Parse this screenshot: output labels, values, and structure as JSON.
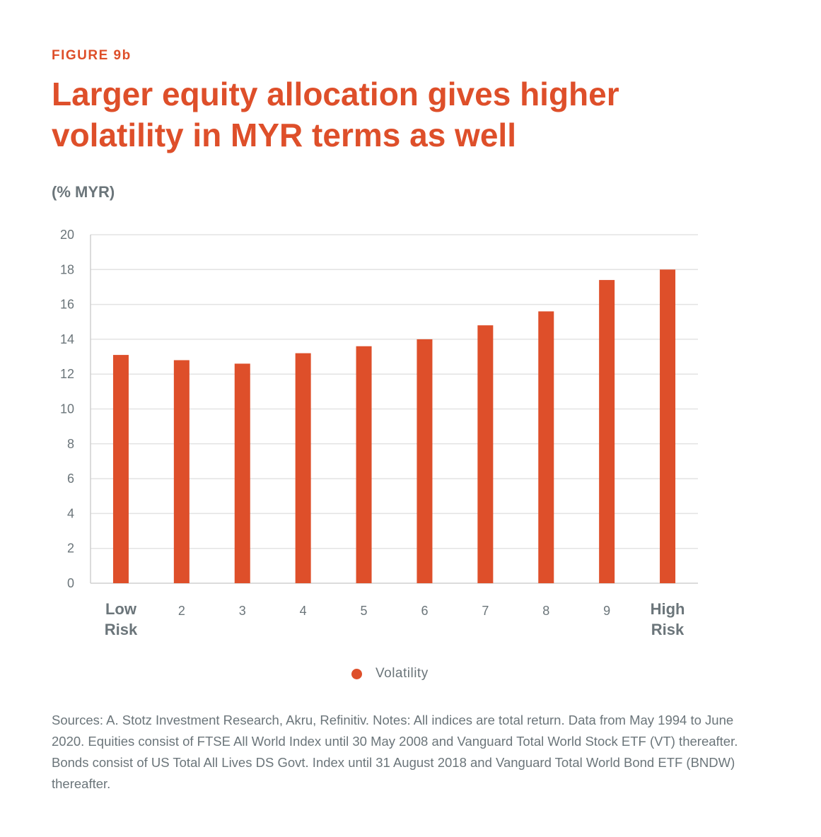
{
  "header": {
    "figure_label": "FIGURE 9b",
    "title": "Larger equity allocation gives higher volatility in MYR terms as well",
    "unit_label": "(% MYR)"
  },
  "colors": {
    "bar": "#de4f2a",
    "grid": "#e3e3e3",
    "text": "#6b757a",
    "axis": "#cfcfcf"
  },
  "chart_data": {
    "type": "bar",
    "title": "Larger equity allocation gives higher volatility in MYR terms as well",
    "ylabel": "(% MYR)",
    "xlabel": "",
    "categories": [
      "Low\nRisk",
      "2",
      "3",
      "4",
      "5",
      "6",
      "7",
      "8",
      "9",
      "High\nRisk"
    ],
    "series": [
      {
        "name": "Volatility",
        "values": [
          13.1,
          12.8,
          12.6,
          13.2,
          13.6,
          14.0,
          14.8,
          15.6,
          17.4,
          18.0
        ]
      }
    ],
    "ylim": [
      0,
      20
    ],
    "yticks": [
      0,
      2,
      4,
      6,
      8,
      10,
      12,
      14,
      16,
      18,
      20
    ],
    "grid": true,
    "legend_position": "bottom-center"
  },
  "legend": {
    "label": "Volatility"
  },
  "footer": {
    "notes": "Sources: A. Stotz Investment Research, Akru, Refinitiv. Notes: All indices are total return. Data from May 1994 to June 2020. Equities consist of FTSE All World Index until 30 May 2008 and Vanguard Total World Stock ETF (VT) thereafter. Bonds consist of US Total All Lives DS Govt. Index until 31 August 2018 and Vanguard Total World Bond ETF (BNDW) thereafter."
  }
}
